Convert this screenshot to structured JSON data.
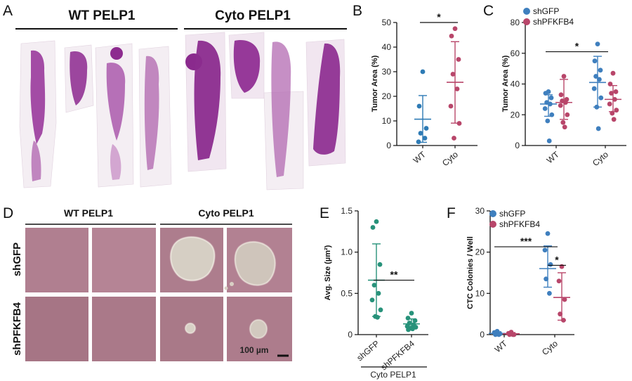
{
  "panels": {
    "A": {
      "label": "A",
      "headers": [
        "WT PELP1",
        "Cyto PELP1"
      ]
    },
    "D": {
      "label": "D",
      "col_headers": [
        "WT PELP1",
        "Cyto PELP1"
      ],
      "row_labels": [
        "shGFP",
        "shPFKFB4"
      ],
      "scale_bar": "100 µm"
    }
  },
  "colors": {
    "wt_dots": "#2e7bb5",
    "shgfp": "#3f7fbe",
    "shpfkfb4": "#b8466a",
    "green": "#27927a",
    "tissue": "#9a3a9c",
    "tissue_light": "#e8c6e4",
    "micro": "#b07f90"
  },
  "chart_data": [
    {
      "id": "B",
      "type": "scatter",
      "panel_label": "B",
      "ylabel": "Tumor Area (%)",
      "ylim": [
        0,
        50
      ],
      "yticks": [
        0,
        10,
        20,
        30,
        40,
        50
      ],
      "categories": [
        "WT",
        "Cyto"
      ],
      "groups": [
        {
          "category": "WT",
          "color": "#2e7bb5",
          "points": [
            30,
            16,
            7,
            5,
            3,
            1.5
          ],
          "mean": 10.7,
          "sd_low": 1.3,
          "sd_high": 20.3
        },
        {
          "category": "Cyto",
          "color": "#b8466a",
          "points": [
            47.5,
            44.5,
            35,
            29,
            23,
            16,
            9,
            3
          ],
          "mean": 25.7,
          "sd_low": 9.1,
          "sd_high": 42.2
        }
      ],
      "significance": [
        {
          "label": "*",
          "from": "WT",
          "to": "Cyto",
          "y": 50
        }
      ]
    },
    {
      "id": "C",
      "type": "scatter",
      "panel_label": "C",
      "ylabel": "Tumor Area (%)",
      "ylim": [
        0,
        80
      ],
      "yticks": [
        0,
        20,
        40,
        60,
        80
      ],
      "categories": [
        "WT",
        "Cyto"
      ],
      "legend": [
        "shGFP",
        "shPFKFB4"
      ],
      "series": [
        {
          "name": "shGFP",
          "color": "#3f7fbe",
          "groups": [
            {
              "category": "WT",
              "points": [
                35,
                34,
                31,
                28,
                27,
                24,
                20,
                16,
                3
              ],
              "mean": 27,
              "sd_low": 19,
              "sd_high": 33
            },
            {
              "category": "Cyto",
              "points": [
                66,
                55,
                49,
                45,
                43,
                37,
                31,
                25,
                11
              ],
              "mean": 41,
              "sd_low": 25,
              "sd_high": 58
            }
          ]
        },
        {
          "name": "shPFKFB4",
          "color": "#b8466a",
          "groups": [
            {
              "category": "WT",
              "points": [
                45,
                33,
                30,
                29,
                28,
                26,
                20,
                15,
                12
              ],
              "mean": 28,
              "sd_low": 17,
              "sd_high": 43
            },
            {
              "category": "Cyto",
              "points": [
                47,
                40,
                35,
                34,
                30,
                27,
                23,
                21,
                17
              ],
              "mean": 30,
              "sd_low": 22,
              "sd_high": 39
            }
          ]
        }
      ],
      "significance": [
        {
          "label": "*",
          "from": "WT",
          "to": "Cyto",
          "y": 61
        }
      ]
    },
    {
      "id": "E",
      "type": "scatter",
      "panel_label": "E",
      "ylabel": "Avg. Size (µm²)",
      "ylim": [
        0,
        1.5
      ],
      "yticks": [
        0,
        0.5,
        1.0,
        1.5
      ],
      "ytick_labels": [
        "0",
        "0.5",
        "1.0",
        "1.5"
      ],
      "categories": [
        "shGFP",
        "shPFKFB4"
      ],
      "group_label": "Cyto PELP1",
      "groups": [
        {
          "category": "shGFP",
          "color": "#27927a",
          "points": [
            1.37,
            1.3,
            0.85,
            0.6,
            0.5,
            0.42,
            0.3,
            0.22,
            0.21
          ],
          "mean": 0.66,
          "sd_low": 0.22,
          "sd_high": 1.1
        },
        {
          "category": "shPFKFB4",
          "color": "#27927a",
          "points": [
            0.26,
            0.2,
            0.17,
            0.14,
            0.12,
            0.1,
            0.09,
            0.08,
            0.07,
            0.06
          ],
          "mean": 0.13,
          "sd_low": 0.08,
          "sd_high": 0.19
        }
      ],
      "significance": [
        {
          "label": "**",
          "from": "shGFP",
          "to": "shPFKFB4",
          "y": 0.66
        }
      ]
    },
    {
      "id": "F",
      "type": "scatter",
      "panel_label": "F",
      "ylabel": "CTC Colonies / Well",
      "ylim": [
        0,
        30
      ],
      "yticks": [
        0,
        10,
        20,
        30
      ],
      "categories": [
        "WT",
        "Cyto"
      ],
      "legend": [
        "shGFP",
        "shPFKFB4"
      ],
      "series": [
        {
          "name": "shGFP",
          "color": "#3f7fbe",
          "groups": [
            {
              "category": "WT",
              "points": [
                0.8,
                0.5,
                0.2,
                0,
                0
              ],
              "mean": 0.3,
              "sd_low": 0,
              "sd_high": 0.7
            },
            {
              "category": "Cyto",
              "points": [
                24.5,
                20.5,
                17,
                13.5,
                10
              ],
              "mean": 16,
              "sd_low": 11.5,
              "sd_high": 21.5
            }
          ]
        },
        {
          "name": "shPFKFB4",
          "color": "#b8466a",
          "groups": [
            {
              "category": "WT",
              "points": [
                0.6,
                0.3,
                0,
                0,
                0
              ],
              "mean": 0.2,
              "sd_low": 0,
              "sd_high": 0.5
            },
            {
              "category": "Cyto",
              "points": [
                16.5,
                13,
                8.5,
                5,
                3.5
              ],
              "mean": 9,
              "sd_low": 3.5,
              "sd_high": 15
            }
          ]
        }
      ],
      "significance": [
        {
          "label": "***",
          "from": "WT",
          "to": "Cyto",
          "y": 21.3
        },
        {
          "label": "*",
          "within": "Cyto",
          "y": 16.8
        }
      ]
    }
  ]
}
